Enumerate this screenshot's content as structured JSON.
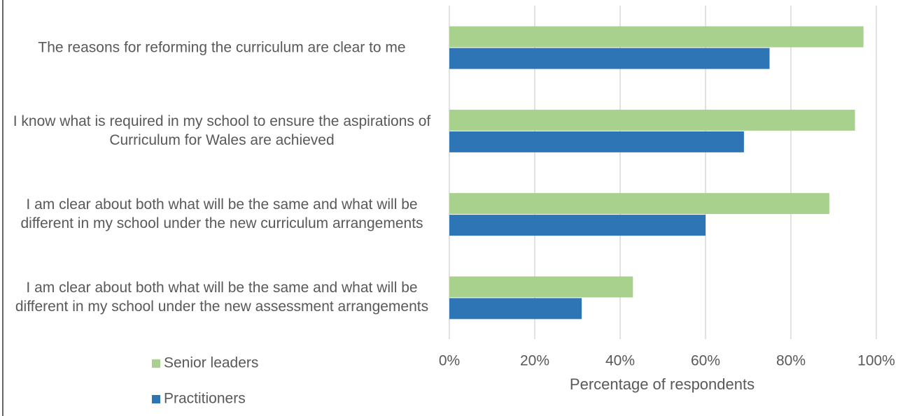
{
  "chart_data": {
    "type": "bar",
    "orientation": "horizontal",
    "categories": [
      "The reasons for reforming the curriculum are clear to me",
      "I know what is required in my school to ensure the aspirations of Curriculum for Wales are achieved",
      "I am clear about both what will be the same and what will be different in my school under the new curriculum arrangements",
      "I am clear about both what will be the same and what will be different in my school under the new assessment arrangements"
    ],
    "series": [
      {
        "name": "Senior leaders",
        "color": "#a9d18e",
        "values": [
          97,
          95,
          89,
          43
        ]
      },
      {
        "name": "Practitioners",
        "color": "#2e75b6",
        "values": [
          75,
          69,
          60,
          31
        ]
      }
    ],
    "xlabel": "Percentage of respondents",
    "xlim": [
      0,
      100
    ],
    "xticks": [
      {
        "value": 0,
        "label": "0%"
      },
      {
        "value": 20,
        "label": "20%"
      },
      {
        "value": 40,
        "label": "40%"
      },
      {
        "value": 60,
        "label": "60%"
      },
      {
        "value": 80,
        "label": "80%"
      },
      {
        "value": 100,
        "label": "100%"
      }
    ],
    "grid": true,
    "legend": "bottom-left"
  }
}
